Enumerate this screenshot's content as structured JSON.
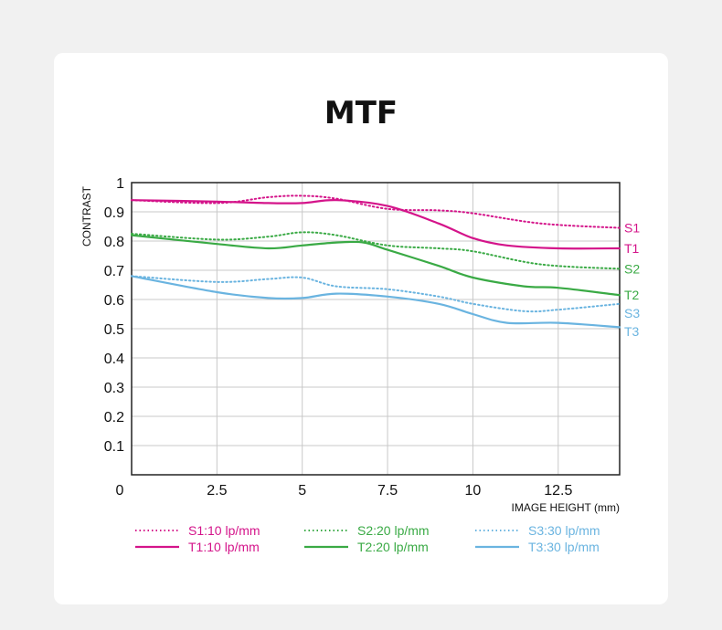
{
  "chart_data": {
    "type": "line",
    "title": "MTF",
    "xlabel": "IMAGE HEIGHT  (mm)",
    "ylabel": "CONTRAST",
    "xlim": [
      0,
      14.3
    ],
    "ylim": [
      0,
      1
    ],
    "x_ticks": [
      "2.5",
      "5",
      "7.5",
      "10",
      "12.5"
    ],
    "y_ticks": [
      "0.1",
      "0.2",
      "0.3",
      "0.4",
      "0.5",
      "0.6",
      "0.7",
      "0.8",
      "0.9",
      "1"
    ],
    "origin_label": "0",
    "grid": true,
    "legend_position": "bottom",
    "series": [
      {
        "name": "S1:10 lp/mm",
        "end_label": "S1",
        "color": "#d4148a",
        "style": "dotted",
        "x": [
          0,
          2.5,
          4,
          5,
          6,
          7.5,
          9,
          10,
          12,
          14.3
        ],
        "y": [
          0.94,
          0.93,
          0.95,
          0.955,
          0.945,
          0.91,
          0.905,
          0.895,
          0.86,
          0.845
        ]
      },
      {
        "name": "T1:10 lp/mm",
        "end_label": "T1",
        "color": "#d4148a",
        "style": "solid",
        "x": [
          0,
          2.5,
          4,
          5,
          6,
          7.5,
          9,
          10,
          11,
          12.5,
          14.3
        ],
        "y": [
          0.94,
          0.935,
          0.93,
          0.93,
          0.94,
          0.92,
          0.86,
          0.81,
          0.785,
          0.775,
          0.775
        ]
      },
      {
        "name": "S2:20 lp/mm",
        "end_label": "S2",
        "color": "#3aaa45",
        "style": "dotted",
        "x": [
          0,
          2.5,
          4,
          5,
          6,
          7.5,
          9,
          10,
          12,
          14.3
        ],
        "y": [
          0.825,
          0.805,
          0.815,
          0.83,
          0.82,
          0.785,
          0.775,
          0.765,
          0.72,
          0.705
        ]
      },
      {
        "name": "T2:20 lp/mm",
        "end_label": "T2",
        "color": "#3aaa45",
        "style": "solid",
        "x": [
          0,
          2.5,
          4,
          5,
          6,
          6.8,
          7.5,
          9,
          10,
          11.5,
          12.5,
          14.3
        ],
        "y": [
          0.82,
          0.79,
          0.775,
          0.785,
          0.795,
          0.795,
          0.77,
          0.715,
          0.675,
          0.645,
          0.64,
          0.615
        ]
      },
      {
        "name": "S3:30 lp/mm",
        "end_label": "S3",
        "color": "#6ab4e0",
        "style": "dotted",
        "x": [
          0,
          2.5,
          4,
          5,
          6,
          7.5,
          9,
          10,
          11.5,
          12.5,
          14.3
        ],
        "y": [
          0.68,
          0.66,
          0.67,
          0.675,
          0.645,
          0.635,
          0.61,
          0.585,
          0.56,
          0.565,
          0.585
        ]
      },
      {
        "name": "T3:30 lp/mm",
        "end_label": "T3",
        "color": "#6ab4e0",
        "style": "solid",
        "x": [
          0,
          2.5,
          4,
          5,
          6,
          7.5,
          9,
          10,
          11,
          12.5,
          14.3
        ],
        "y": [
          0.68,
          0.625,
          0.605,
          0.605,
          0.62,
          0.61,
          0.585,
          0.55,
          0.52,
          0.52,
          0.505
        ]
      }
    ]
  }
}
